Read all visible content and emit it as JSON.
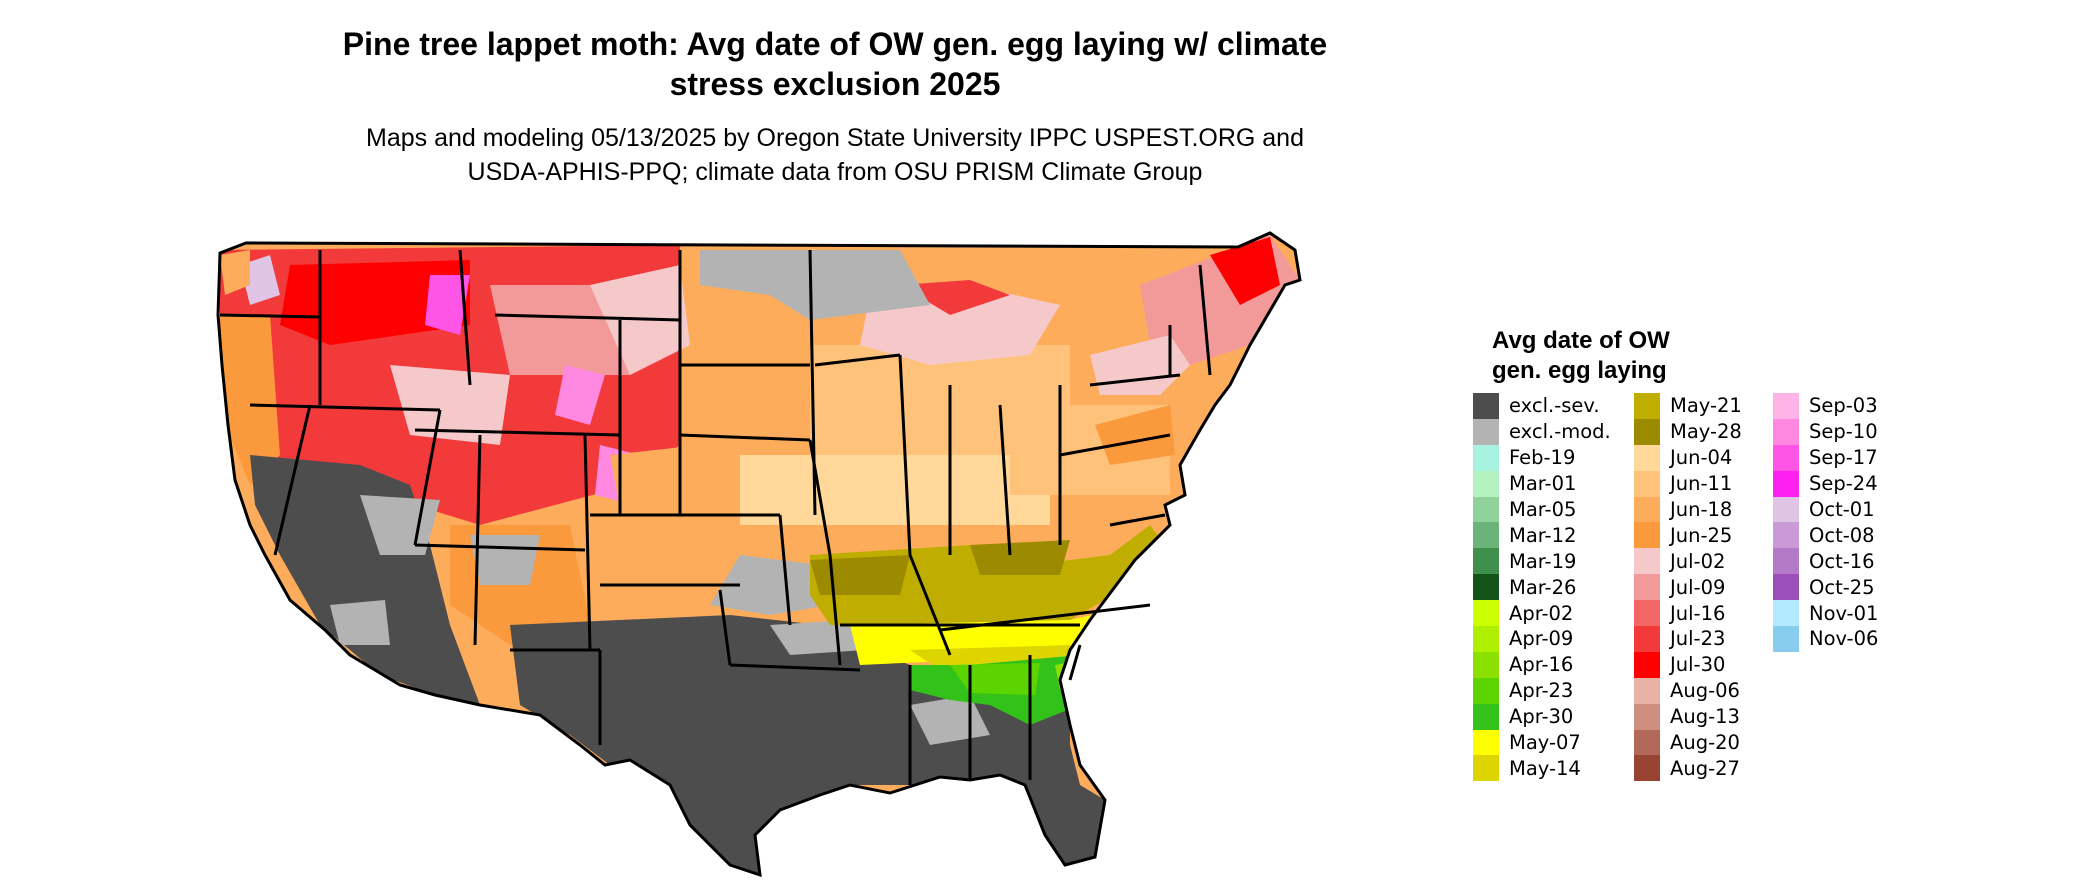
{
  "title_line1": "Pine tree lappet moth: Avg date of OW gen. egg laying w/ climate",
  "title_line2": "stress exclusion 2025",
  "subtitle_line1": "Maps and modeling 05/13/2025 by Oregon State University IPPC USPEST.ORG and",
  "subtitle_line2": "USDA-APHIS-PPQ; climate data from OSU PRISM Climate Group",
  "legend": {
    "title_line1": "Avg date of OW",
    "title_line2": "gen. egg laying",
    "columns": [
      [
        {
          "label": "excl.-sev.",
          "color": "#4d4d4d"
        },
        {
          "label": "excl.-mod.",
          "color": "#b3b3b3"
        },
        {
          "label": "Feb-19",
          "color": "#a8f2e2"
        },
        {
          "label": "Mar-01",
          "color": "#b5f2c2"
        },
        {
          "label": "Mar-05",
          "color": "#8fd39b"
        },
        {
          "label": "Mar-12",
          "color": "#6ab47a"
        },
        {
          "label": "Mar-19",
          "color": "#3f8f4d"
        },
        {
          "label": "Mar-26",
          "color": "#14531a"
        },
        {
          "label": "Apr-02",
          "color": "#ccff00"
        },
        {
          "label": "Apr-09",
          "color": "#aef000"
        },
        {
          "label": "Apr-16",
          "color": "#8ce000"
        },
        {
          "label": "Apr-23",
          "color": "#5cd400"
        },
        {
          "label": "Apr-30",
          "color": "#33c21a"
        },
        {
          "label": "May-07",
          "color": "#ffff00"
        },
        {
          "label": "May-14",
          "color": "#ddd400"
        }
      ],
      [
        {
          "label": "May-21",
          "color": "#bfae00"
        },
        {
          "label": "May-28",
          "color": "#9c8a00"
        },
        {
          "label": "Jun-04",
          "color": "#ffd89a"
        },
        {
          "label": "Jun-11",
          "color": "#ffc27a"
        },
        {
          "label": "Jun-18",
          "color": "#fdac5c"
        },
        {
          "label": "Jun-25",
          "color": "#fb9a3c"
        },
        {
          "label": "Jul-02",
          "color": "#f5c9c9"
        },
        {
          "label": "Jul-09",
          "color": "#f29a9a"
        },
        {
          "label": "Jul-16",
          "color": "#f26666"
        },
        {
          "label": "Jul-23",
          "color": "#f23a3a"
        },
        {
          "label": "Jul-30",
          "color": "#ff0000"
        },
        {
          "label": "Aug-06",
          "color": "#e8b3a6"
        },
        {
          "label": "Aug-13",
          "color": "#cf8f80"
        },
        {
          "label": "Aug-20",
          "color": "#b3695a"
        },
        {
          "label": "Aug-27",
          "color": "#994433"
        }
      ],
      [
        {
          "label": "Sep-03",
          "color": "#ffb3e6"
        },
        {
          "label": "Sep-10",
          "color": "#ff88e0"
        },
        {
          "label": "Sep-17",
          "color": "#ff55e6"
        },
        {
          "label": "Sep-24",
          "color": "#ff1fee"
        },
        {
          "label": "Oct-01",
          "color": "#dfc4e6"
        },
        {
          "label": "Oct-08",
          "color": "#c99ad6"
        },
        {
          "label": "Oct-16",
          "color": "#b37ac9"
        },
        {
          "label": "Oct-25",
          "color": "#9c4fb8"
        },
        {
          "label": "Nov-01",
          "color": "#b3e9ff"
        },
        {
          "label": "Nov-06",
          "color": "#88ccee"
        }
      ]
    ]
  }
}
